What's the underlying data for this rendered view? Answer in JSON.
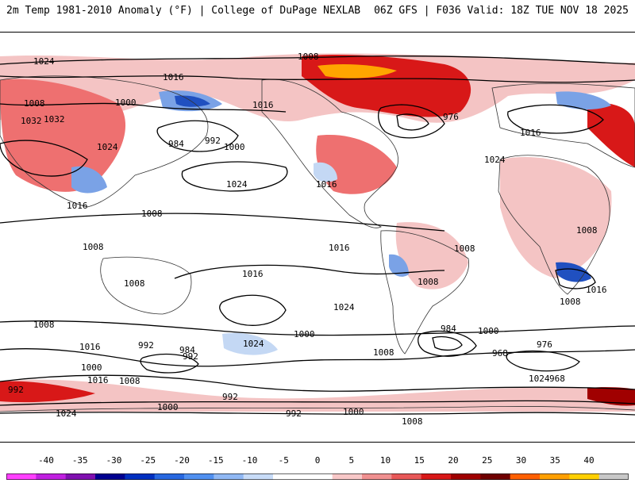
{
  "header": {
    "left_title": "2m Temp 1981-2010 Anomaly (°F) | College of DuPage NEXLAB",
    "right_title": "06Z GFS | F036 Valid: 18Z TUE NOV 18 2025"
  },
  "map": {
    "isobar_labels": [
      "1024",
      "1016",
      "1008",
      "1000",
      "1032",
      "984",
      "992",
      "976",
      "968",
      "1024",
      "1008",
      "1016",
      "1000",
      "992",
      "1008",
      "1016",
      "1024",
      "1016",
      "1008",
      "1016",
      "1008",
      "1008",
      "1016",
      "1008",
      "1008",
      "1024",
      "1000",
      "1024",
      "984",
      "1000",
      "976",
      "968",
      "992",
      "984",
      "992",
      "1000",
      "1008",
      "992",
      "1000",
      "1008",
      "1016",
      "1024",
      "1016",
      "1008",
      "1000",
      "992",
      "1008",
      "1016",
      "1016",
      "1008",
      "1024",
      "1032",
      "1024"
    ],
    "anomaly_colors": {
      "warm_light": "#f4c4c4",
      "warm_mid": "#ee7070",
      "warm_strong": "#d81818",
      "warm_extreme": "#a00000",
      "hot_orange": "#ffa500",
      "cold_light": "#c4d8f4",
      "cold_mid": "#7aa2e6",
      "cold_strong": "#2050c0"
    }
  },
  "colorbar": {
    "ticks": [
      "-40",
      "-35",
      "-30",
      "-25",
      "-20",
      "-15",
      "-10",
      "-5",
      "0",
      "5",
      "10",
      "15",
      "20",
      "25",
      "30",
      "35",
      "40"
    ],
    "colors": [
      "#ff40ff",
      "#c020e0",
      "#8010b0",
      "#000090",
      "#0030c0",
      "#2868e0",
      "#5090f0",
      "#90b8f4",
      "#c8dcf8",
      "#ffffff",
      "#ffffff",
      "#f8c8c8",
      "#f09090",
      "#e85858",
      "#d81818",
      "#a00000",
      "#700000",
      "#ff6000",
      "#ffa000",
      "#ffd000",
      "#c8c8c8"
    ]
  }
}
